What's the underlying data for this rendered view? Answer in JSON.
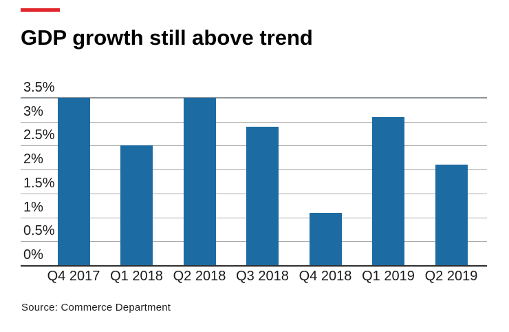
{
  "title": "GDP growth still above trend",
  "source": "Source: Commerce Department",
  "accent": {
    "brand_dash_color": "#e1252b"
  },
  "chart_data": {
    "type": "bar",
    "title": "GDP growth still above trend",
    "categories": [
      "Q4 2017",
      "Q1 2018",
      "Q2 2018",
      "Q3 2018",
      "Q4 2018",
      "Q1 2019",
      "Q2 2019"
    ],
    "values": [
      3.5,
      2.5,
      3.5,
      2.9,
      1.1,
      3.1,
      2.1
    ],
    "unit": "%",
    "xlabel": "",
    "ylabel": "",
    "ylim": [
      0,
      3.5
    ],
    "ytick_step": 0.5,
    "ytick_labels": [
      "3.5%",
      "3%",
      "2.5%",
      "2%",
      "1.5%",
      "1%",
      "0.5%",
      "0%"
    ],
    "grid": true,
    "legend_position": "none",
    "bar_color": "#1d6ba3",
    "gridline_color": "#a8a8a8",
    "baseline_color": "#2e2e2e",
    "source": "Source: Commerce Department"
  }
}
